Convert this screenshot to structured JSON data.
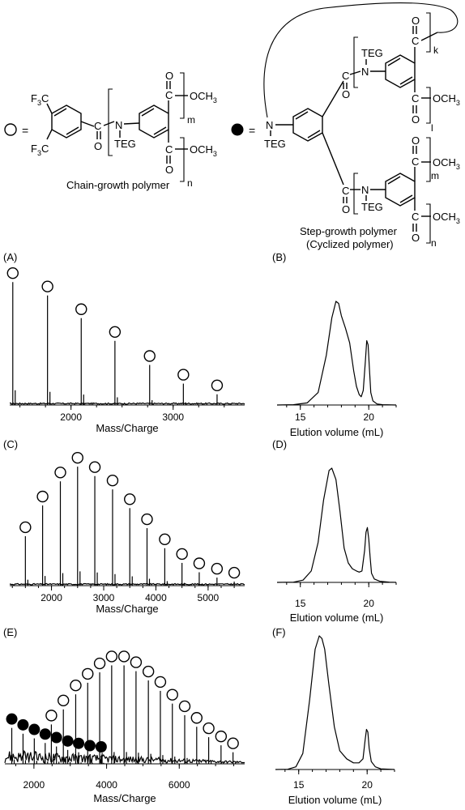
{
  "legend": {
    "open_circle_eq": "=",
    "filled_circle_eq": "=",
    "chain_label": "Chain-growth polymer",
    "step_label_1": "Step-growth polymer",
    "step_label_2": "(Cyclized polymer)"
  },
  "chem": {
    "cf3": "CF",
    "sub3": "3",
    "f3c": "F",
    "c": "C",
    "o": "O",
    "n": "N",
    "teg": "TEG",
    "och3": "OCH",
    "m": "m",
    "n_idx": "n",
    "k": "k",
    "l": "l"
  },
  "chart_data": [
    {
      "id": "A",
      "panel_label": "(A)",
      "type": "bar",
      "xlabel": "Mass/Charge",
      "ylabel": "",
      "xlim": [
        1400,
        3700
      ],
      "ylim": [
        0,
        100
      ],
      "xticks": [
        "2000",
        "3000"
      ],
      "series": [
        {
          "marker": "open",
          "x": [
            1430,
            1770,
            2100,
            2430,
            2770,
            3100,
            3430
          ],
          "values": [
            92,
            82,
            65,
            48,
            30,
            16,
            8
          ]
        }
      ]
    },
    {
      "id": "B",
      "panel_label": "(B)",
      "type": "line",
      "xlabel": "Elution volume (mL)",
      "ylabel": "",
      "xlim": [
        13.3,
        22.0
      ],
      "ylim": [
        0,
        100
      ],
      "xticks": [
        "15",
        "20"
      ],
      "x": [
        13.3,
        14.5,
        15.5,
        16.3,
        16.9,
        17.3,
        17.6,
        17.8,
        18.0,
        18.3,
        18.6,
        18.9,
        19.1,
        19.3,
        19.45,
        19.6,
        19.75,
        19.85,
        19.95,
        20.05,
        20.15,
        20.3,
        20.6,
        21.0,
        22.0
      ],
      "series": [
        {
          "name": "",
          "values": [
            0,
            0.3,
            2,
            12,
            48,
            84,
            100,
            98,
            86,
            74,
            60,
            33,
            18,
            10,
            8,
            14,
            42,
            62,
            58,
            34,
            12,
            4,
            1,
            0.3,
            0
          ]
        }
      ]
    },
    {
      "id": "C",
      "panel_label": "(C)",
      "type": "bar",
      "xlabel": "Mass/Charge",
      "ylabel": "",
      "xlim": [
        1200,
        5700
      ],
      "ylim": [
        0,
        100
      ],
      "xticks": [
        "2000",
        "3000",
        "4000",
        "5000"
      ],
      "series": [
        {
          "marker": "open",
          "x": [
            1500,
            1830,
            2170,
            2500,
            2830,
            3170,
            3500,
            3830,
            4170,
            4500,
            4830,
            5170,
            5500
          ],
          "values": [
            37,
            60,
            78,
            89,
            82,
            72,
            58,
            43,
            28,
            17,
            10,
            6,
            3
          ]
        }
      ]
    },
    {
      "id": "D",
      "panel_label": "(D)",
      "type": "line",
      "xlabel": "Elution volume (mL)",
      "ylabel": "",
      "xlim": [
        13.3,
        22.0
      ],
      "ylim": [
        0,
        100
      ],
      "xticks": [
        "15",
        "20"
      ],
      "x": [
        13.3,
        14.5,
        15.2,
        15.8,
        16.3,
        16.7,
        17.1,
        17.3,
        17.6,
        17.9,
        18.2,
        18.5,
        18.8,
        19.1,
        19.3,
        19.5,
        19.7,
        19.8,
        19.9,
        20.0,
        20.1,
        20.2,
        20.4,
        20.8,
        21.5,
        22.0
      ],
      "series": [
        {
          "name": "",
          "values": [
            0,
            0.2,
            2,
            10,
            35,
            72,
            98,
            100,
            90,
            62,
            30,
            17,
            12,
            10,
            9,
            10,
            28,
            44,
            48,
            38,
            22,
            8,
            3,
            1,
            0.2,
            0
          ]
        }
      ]
    },
    {
      "id": "E",
      "panel_label": "(E)",
      "type": "bar",
      "xlabel": "Mass/Charge",
      "ylabel": "",
      "xlim": [
        1200,
        7800
      ],
      "ylim": [
        0,
        100
      ],
      "xticks": [
        "2000",
        "4000",
        "6000"
      ],
      "series": [
        {
          "marker": "open",
          "x": [
            2480,
            2810,
            3150,
            3480,
            3810,
            4140,
            4480,
            4810,
            5150,
            5480,
            5810,
            6150,
            6480,
            6810,
            7150,
            7480
          ],
          "values": [
            34,
            47,
            60,
            70,
            79,
            85,
            85,
            80,
            72,
            63,
            52,
            42,
            32,
            23,
            16,
            10
          ]
        },
        {
          "marker": "filled",
          "x": [
            1390,
            1700,
            2010,
            2310,
            2620,
            2930,
            3230,
            3540,
            3850
          ],
          "values": [
            31,
            26,
            22,
            18,
            15,
            12,
            10,
            8,
            7
          ]
        }
      ]
    },
    {
      "id": "F",
      "panel_label": "(F)",
      "type": "line",
      "xlabel": "Elution volume (mL)",
      "ylabel": "",
      "xlim": [
        13.3,
        22.0
      ],
      "ylim": [
        0,
        100
      ],
      "xticks": [
        "15",
        "20"
      ],
      "x": [
        13.3,
        14.2,
        14.8,
        15.3,
        15.8,
        16.2,
        16.5,
        16.7,
        16.9,
        17.2,
        17.6,
        18.0,
        18.5,
        19.0,
        19.4,
        19.7,
        19.85,
        19.95,
        20.05,
        20.15,
        20.3,
        20.6,
        21.0,
        22.0
      ],
      "series": [
        {
          "name": "",
          "values": [
            0,
            0.2,
            2,
            12,
            52,
            90,
            100,
            98,
            90,
            64,
            32,
            14,
            8,
            5,
            5,
            8,
            22,
            30,
            28,
            16,
            6,
            2,
            0.5,
            0
          ]
        }
      ]
    }
  ]
}
